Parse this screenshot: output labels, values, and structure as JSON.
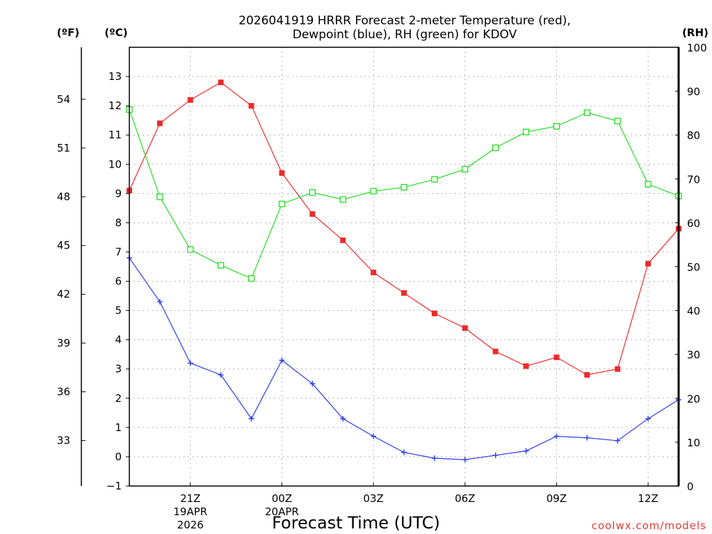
{
  "chart_data": {
    "type": "line",
    "title": {
      "line1": "2026041919 HRRR Forecast 2-meter Temperature (red),",
      "line2": "Dewpoint (blue), RH (green) for KDOV"
    },
    "xlabel": "Forecast Time (UTC)",
    "credit": "coolwx.com/models",
    "units": {
      "fahrenheit": "(ºF)",
      "celsius": "(ºC)",
      "rh": "(RH)"
    },
    "x_hours": [
      19,
      20,
      21,
      22,
      23,
      24,
      25,
      26,
      27,
      28,
      29,
      30,
      31,
      32,
      33,
      34,
      35,
      36,
      37
    ],
    "x_ticks": [
      {
        "hour": 21,
        "label": "21Z",
        "date": "19APR",
        "year": "2026"
      },
      {
        "hour": 24,
        "label": "00Z",
        "date": "20APR"
      },
      {
        "hour": 27,
        "label": "03Z"
      },
      {
        "hour": 30,
        "label": "06Z"
      },
      {
        "hour": 33,
        "label": "09Z"
      },
      {
        "hour": 36,
        "label": "12Z"
      }
    ],
    "xlim": [
      19,
      37
    ],
    "celsius_axis": {
      "ylim": [
        -1,
        14
      ],
      "ticks": [
        -1,
        0,
        1,
        2,
        3,
        4,
        5,
        6,
        7,
        8,
        9,
        10,
        11,
        12,
        13
      ]
    },
    "fahrenheit_axis": {
      "ticks": [
        33,
        36,
        39,
        42,
        45,
        48,
        51,
        54
      ]
    },
    "rh_axis": {
      "ylim": [
        0,
        100
      ],
      "ticks": [
        0,
        10,
        20,
        30,
        40,
        50,
        60,
        70,
        80,
        90,
        100
      ]
    },
    "grid": true,
    "series": [
      {
        "name": "Temperature",
        "axis": "celsius",
        "color": "#ee2a2a",
        "marker": "filled-square",
        "values": [
          9.1,
          11.4,
          12.2,
          12.8,
          12.0,
          9.7,
          8.3,
          7.4,
          6.3,
          5.6,
          4.9,
          4.4,
          3.6,
          3.1,
          3.4,
          2.8,
          3.0,
          6.6,
          7.8
        ]
      },
      {
        "name": "Dewpoint",
        "axis": "celsius",
        "color": "#2a3ce8",
        "marker": "plus",
        "values": [
          6.8,
          5.3,
          3.2,
          2.8,
          1.3,
          3.3,
          2.5,
          1.3,
          0.7,
          0.15,
          -0.05,
          -0.1,
          0.05,
          0.2,
          0.7,
          0.65,
          0.55,
          1.3,
          1.95
        ]
      },
      {
        "name": "RH",
        "axis": "rh",
        "color": "#22dd22",
        "marker": "open-square",
        "values": [
          85.8,
          65.9,
          53.9,
          50.3,
          47.3,
          64.3,
          66.9,
          65.3,
          67.2,
          68.1,
          69.9,
          72.2,
          77.1,
          80.7,
          82.0,
          85.1,
          83.2,
          68.8,
          66.1
        ]
      }
    ]
  }
}
